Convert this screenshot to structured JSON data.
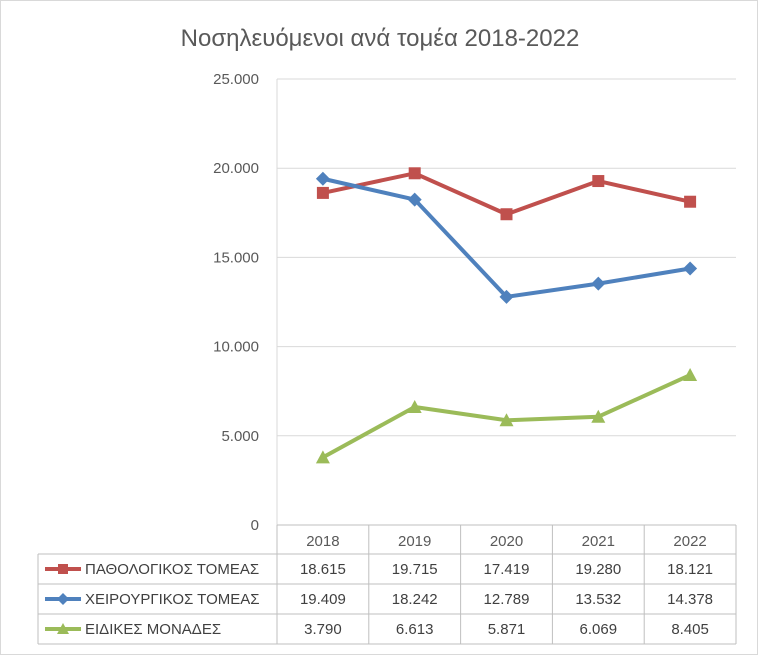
{
  "chart_data": {
    "type": "line",
    "title": "Νοσηλευόμενοι ανά τομέα 2018-2022",
    "categories": [
      "2018",
      "2019",
      "2020",
      "2021",
      "2022"
    ],
    "ylim": [
      0,
      25000
    ],
    "yticks": [
      0,
      5000,
      10000,
      15000,
      20000,
      25000
    ],
    "ytick_labels": [
      "0",
      "5.000",
      "10.000",
      "15.000",
      "20.000",
      "25.000"
    ],
    "grid": true,
    "legend": "data-table-below",
    "series": [
      {
        "name": "ΠΑΘΟΛΟΓΙΚΟΣ ΤΟΜΕΑΣ",
        "values": [
          18615,
          19715,
          17419,
          19280,
          18121
        ],
        "labels": [
          "18.615",
          "19.715",
          "17.419",
          "19.280",
          "18.121"
        ],
        "color": "#c0504d",
        "marker": "square"
      },
      {
        "name": "ΧΕΙΡΟΥΡΓΙΚΟΣ ΤΟΜΕΑΣ",
        "values": [
          19409,
          18242,
          12789,
          13532,
          14378
        ],
        "labels": [
          "19.409",
          "18.242",
          "12.789",
          "13.532",
          "14.378"
        ],
        "color": "#4f81bd",
        "marker": "diamond"
      },
      {
        "name": "ΕΙΔΙΚΕΣ ΜΟΝΑΔΕΣ",
        "values": [
          3790,
          6613,
          5871,
          6069,
          8405
        ],
        "labels": [
          "3.790",
          "6.613",
          "5.871",
          "6.069",
          "8.405"
        ],
        "color": "#9bbb59",
        "marker": "triangle"
      }
    ]
  }
}
